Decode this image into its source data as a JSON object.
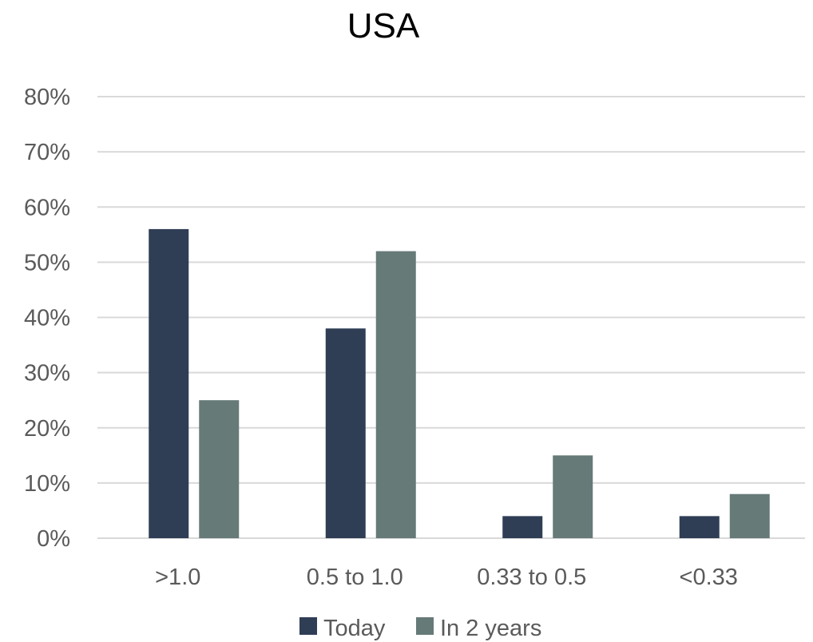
{
  "chart_data": {
    "type": "bar",
    "title": "USA",
    "xlabel": "",
    "ylabel": "",
    "categories": [
      ">1.0",
      "0.5 to 1.0",
      "0.33 to 0.5",
      "<0.33"
    ],
    "series": [
      {
        "name": "Today",
        "values": [
          56,
          38,
          4,
          4
        ],
        "color": "#2f3e55"
      },
      {
        "name": "In 2 years",
        "values": [
          25,
          52,
          15,
          8
        ],
        "color": "#667a78"
      }
    ],
    "ylim": [
      0,
      80
    ],
    "yticks": [
      0,
      10,
      20,
      30,
      40,
      50,
      60,
      70,
      80
    ],
    "ytick_suffix": "%",
    "grid": true,
    "legend": "bottom"
  }
}
